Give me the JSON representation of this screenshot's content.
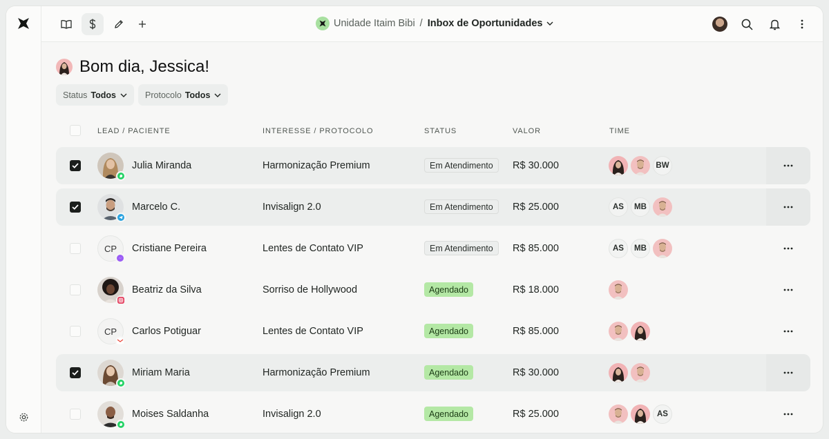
{
  "topbar": {
    "unit": "Unidade Itaim Bibi",
    "separator": "/",
    "inbox": "Inbox de Oportunidades"
  },
  "greeting": "Bom dia, Jessica!",
  "filters": [
    {
      "label": "Status",
      "value": "Todos"
    },
    {
      "label": "Protocolo",
      "value": "Todos"
    }
  ],
  "columns": {
    "lead": "LEAD / PACIENTE",
    "interest": "INTERESSE / PROTOCOLO",
    "status": "STATUS",
    "value": "VALOR",
    "team": "TIME"
  },
  "colors": {
    "accent": "#a8e0a0",
    "agendado": "#b4e8a5",
    "whatsapp": "#25d366",
    "telegram": "#2aa3e0",
    "messenger": "#9b5cf5",
    "instagram": "#e4405f",
    "gmail": "#ea4335"
  },
  "rows": [
    {
      "name": "Julia Miranda",
      "initials": "",
      "channel": "whatsapp",
      "interest": "Harmonização Premium",
      "status": "Em Atendimento",
      "status_kind": "atend",
      "value": "R$ 30.000",
      "selected": true,
      "team": [
        {
          "kind": "photo-f"
        },
        {
          "kind": "photo-m"
        },
        {
          "kind": "initials",
          "text": "BW"
        }
      ]
    },
    {
      "name": "Marcelo C.",
      "initials": "",
      "channel": "telegram",
      "interest": "Invisalign 2.0",
      "status": "Em Atendimento",
      "status_kind": "atend",
      "value": "R$ 25.000",
      "selected": true,
      "team": [
        {
          "kind": "initials",
          "text": "AS"
        },
        {
          "kind": "initials",
          "text": "MB"
        },
        {
          "kind": "photo-m"
        }
      ]
    },
    {
      "name": "Cristiane Pereira",
      "initials": "CP",
      "channel": "messenger",
      "interest": "Lentes de Contato VIP",
      "status": "Em Atendimento",
      "status_kind": "atend",
      "value": "R$ 85.000",
      "selected": false,
      "team": [
        {
          "kind": "initials",
          "text": "AS"
        },
        {
          "kind": "initials",
          "text": "MB"
        },
        {
          "kind": "photo-m"
        }
      ]
    },
    {
      "name": "Beatriz da Silva",
      "initials": "",
      "channel": "instagram",
      "interest": "Sorriso de Hollywood",
      "status": "Agendado",
      "status_kind": "agend",
      "value": "R$ 18.000",
      "selected": false,
      "team": [
        {
          "kind": "photo-m"
        }
      ]
    },
    {
      "name": "Carlos Potiguar",
      "initials": "CP",
      "channel": "gmail",
      "interest": "Lentes de Contato VIP",
      "status": "Agendado",
      "status_kind": "agend",
      "value": "R$ 85.000",
      "selected": false,
      "team": [
        {
          "kind": "photo-m"
        },
        {
          "kind": "photo-f"
        }
      ]
    },
    {
      "name": "Miriam Maria",
      "initials": "",
      "channel": "whatsapp",
      "interest": "Harmonização Premium",
      "status": "Agendado",
      "status_kind": "agend",
      "value": "R$ 30.000",
      "selected": true,
      "team": [
        {
          "kind": "photo-f"
        },
        {
          "kind": "photo-m"
        }
      ]
    },
    {
      "name": "Moises Saldanha",
      "initials": "",
      "channel": "whatsapp",
      "interest": "Invisalign 2.0",
      "status": "Agendado",
      "status_kind": "agend",
      "value": "R$ 25.000",
      "selected": false,
      "team": [
        {
          "kind": "photo-m"
        },
        {
          "kind": "photo-f"
        },
        {
          "kind": "initials",
          "text": "AS"
        }
      ]
    }
  ]
}
